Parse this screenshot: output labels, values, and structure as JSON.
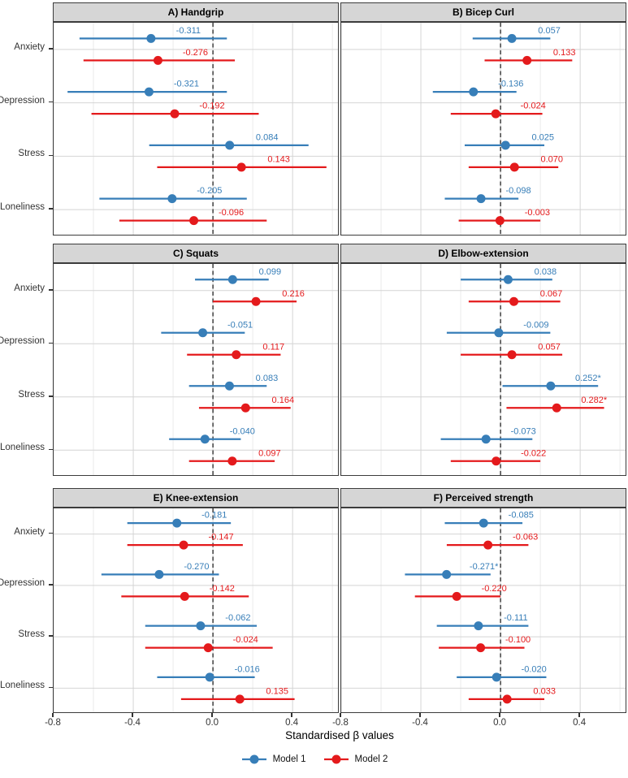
{
  "chart_data": {
    "type": "forest",
    "xlabel": "Standardised β values",
    "x_ticks": [
      -0.8,
      -0.4,
      0.0,
      0.4
    ],
    "x_tick_labels": [
      "-0.8",
      "-0.4",
      "0.0",
      "0.4"
    ],
    "x_minor_ticks": [
      -0.6,
      -0.2,
      0.2,
      0.6
    ],
    "xlim": [
      -0.8,
      0.636
    ],
    "zero_line": 0,
    "grid": true,
    "legend_position": "bottom",
    "categories": [
      "Anxiety",
      "Depression",
      "Stress",
      "Loneliness"
    ],
    "series_names": [
      "Model 1",
      "Model 2"
    ],
    "colors": {
      "Model 1": "#377eb8",
      "Model 2": "#e41a1c"
    },
    "panels": [
      {
        "title": "A) Handgrip",
        "rows": [
          {
            "category": "Anxiety",
            "m1": {
              "est": -0.311,
              "label": "-0.311",
              "lo": -0.67,
              "hi": 0.07
            },
            "m2": {
              "est": -0.276,
              "label": "-0.276",
              "lo": -0.65,
              "hi": 0.11
            }
          },
          {
            "category": "Depression",
            "m1": {
              "est": -0.321,
              "label": "-0.321",
              "lo": -0.73,
              "hi": 0.07
            },
            "m2": {
              "est": -0.192,
              "label": "-0.192",
              "lo": -0.61,
              "hi": 0.23
            }
          },
          {
            "category": "Stress",
            "m1": {
              "est": 0.084,
              "label": "0.084",
              "lo": -0.32,
              "hi": 0.48
            },
            "m2": {
              "est": 0.143,
              "label": "0.143",
              "lo": -0.28,
              "hi": 0.57
            }
          },
          {
            "category": "Loneliness",
            "m1": {
              "est": -0.205,
              "label": "-0.205",
              "lo": -0.57,
              "hi": 0.17
            },
            "m2": {
              "est": -0.096,
              "label": "-0.096",
              "lo": -0.47,
              "hi": 0.27
            }
          }
        ]
      },
      {
        "title": "B) Bicep Curl",
        "rows": [
          {
            "category": "Anxiety",
            "m1": {
              "est": 0.057,
              "label": "0.057",
              "lo": -0.14,
              "hi": 0.25
            },
            "m2": {
              "est": 0.133,
              "label": "0.133",
              "lo": -0.08,
              "hi": 0.36
            }
          },
          {
            "category": "Depression",
            "m1": {
              "est": -0.136,
              "label": "-0.136",
              "lo": -0.34,
              "hi": 0.08
            },
            "m2": {
              "est": -0.024,
              "label": "-0.024",
              "lo": -0.25,
              "hi": 0.21
            }
          },
          {
            "category": "Stress",
            "m1": {
              "est": 0.025,
              "label": "0.025",
              "lo": -0.18,
              "hi": 0.22
            },
            "m2": {
              "est": 0.07,
              "label": "0.070",
              "lo": -0.16,
              "hi": 0.29
            }
          },
          {
            "category": "Loneliness",
            "m1": {
              "est": -0.098,
              "label": "-0.098",
              "lo": -0.28,
              "hi": 0.09
            },
            "m2": {
              "est": -0.003,
              "label": "-0.003",
              "lo": -0.21,
              "hi": 0.2
            }
          }
        ]
      },
      {
        "title": "C) Squats",
        "rows": [
          {
            "category": "Anxiety",
            "m1": {
              "est": 0.099,
              "label": "0.099",
              "lo": -0.09,
              "hi": 0.28
            },
            "m2": {
              "est": 0.216,
              "label": "0.216",
              "lo": 0.0,
              "hi": 0.42
            }
          },
          {
            "category": "Depression",
            "m1": {
              "est": -0.051,
              "label": "-0.051",
              "lo": -0.26,
              "hi": 0.16
            },
            "m2": {
              "est": 0.117,
              "label": "0.117",
              "lo": -0.13,
              "hi": 0.34
            }
          },
          {
            "category": "Stress",
            "m1": {
              "est": 0.083,
              "label": "0.083",
              "lo": -0.12,
              "hi": 0.27
            },
            "m2": {
              "est": 0.164,
              "label": "0.164",
              "lo": -0.07,
              "hi": 0.39
            }
          },
          {
            "category": "Loneliness",
            "m1": {
              "est": -0.04,
              "label": "-0.040",
              "lo": -0.22,
              "hi": 0.14
            },
            "m2": {
              "est": 0.097,
              "label": "0.097",
              "lo": -0.12,
              "hi": 0.31
            }
          }
        ]
      },
      {
        "title": "D) Elbow-extension",
        "rows": [
          {
            "category": "Anxiety",
            "m1": {
              "est": 0.038,
              "label": "0.038",
              "lo": -0.2,
              "hi": 0.26
            },
            "m2": {
              "est": 0.067,
              "label": "0.067",
              "lo": -0.16,
              "hi": 0.3
            }
          },
          {
            "category": "Depression",
            "m1": {
              "est": -0.009,
              "label": "-0.009",
              "lo": -0.27,
              "hi": 0.25
            },
            "m2": {
              "est": 0.057,
              "label": "0.057",
              "lo": -0.2,
              "hi": 0.31
            }
          },
          {
            "category": "Stress",
            "m1": {
              "est": 0.252,
              "label": "0.252*",
              "lo": 0.01,
              "hi": 0.49
            },
            "m2": {
              "est": 0.282,
              "label": "0.282*",
              "lo": 0.03,
              "hi": 0.52
            }
          },
          {
            "category": "Loneliness",
            "m1": {
              "est": -0.073,
              "label": "-0.073",
              "lo": -0.3,
              "hi": 0.16
            },
            "m2": {
              "est": -0.022,
              "label": "-0.022",
              "lo": -0.25,
              "hi": 0.2
            }
          }
        ]
      },
      {
        "title": "E) Knee-extension",
        "rows": [
          {
            "category": "Anxiety",
            "m1": {
              "est": -0.181,
              "label": "-0.181",
              "lo": -0.43,
              "hi": 0.09
            },
            "m2": {
              "est": -0.147,
              "label": "-0.147",
              "lo": -0.43,
              "hi": 0.15
            }
          },
          {
            "category": "Depression",
            "m1": {
              "est": -0.27,
              "label": "-0.270",
              "lo": -0.56,
              "hi": 0.03
            },
            "m2": {
              "est": -0.142,
              "label": "-0.142",
              "lo": -0.46,
              "hi": 0.18
            }
          },
          {
            "category": "Stress",
            "m1": {
              "est": -0.062,
              "label": "-0.062",
              "lo": -0.34,
              "hi": 0.22
            },
            "m2": {
              "est": -0.024,
              "label": "-0.024",
              "lo": -0.34,
              "hi": 0.3
            }
          },
          {
            "category": "Loneliness",
            "m1": {
              "est": -0.016,
              "label": "-0.016",
              "lo": -0.28,
              "hi": 0.21
            },
            "m2": {
              "est": 0.135,
              "label": "0.135",
              "lo": -0.16,
              "hi": 0.41
            }
          }
        ]
      },
      {
        "title": "F) Perceived strength",
        "rows": [
          {
            "category": "Anxiety",
            "m1": {
              "est": -0.085,
              "label": "-0.085",
              "lo": -0.28,
              "hi": 0.11
            },
            "m2": {
              "est": -0.063,
              "label": "-0.063",
              "lo": -0.27,
              "hi": 0.14
            }
          },
          {
            "category": "Depression",
            "m1": {
              "est": -0.271,
              "label": "-0.271*",
              "lo": -0.48,
              "hi": -0.05
            },
            "m2": {
              "est": -0.22,
              "label": "-0.220",
              "lo": -0.43,
              "hi": 0.0
            }
          },
          {
            "category": "Stress",
            "m1": {
              "est": -0.111,
              "label": "-0.111",
              "lo": -0.32,
              "hi": 0.14
            },
            "m2": {
              "est": -0.1,
              "label": "-0.100",
              "lo": -0.31,
              "hi": 0.12
            }
          },
          {
            "category": "Loneliness",
            "m1": {
              "est": -0.02,
              "label": "-0.020",
              "lo": -0.22,
              "hi": 0.23
            },
            "m2": {
              "est": 0.033,
              "label": "0.033",
              "lo": -0.16,
              "hi": 0.22
            }
          }
        ]
      }
    ]
  }
}
